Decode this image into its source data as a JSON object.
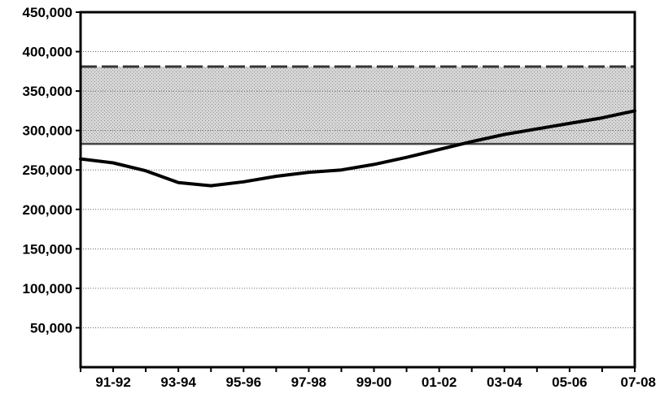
{
  "chart_data": {
    "type": "line",
    "title": "",
    "xlabel": "",
    "ylabel": "",
    "ylim": [
      0,
      450000
    ],
    "y_ticks": [
      50000,
      100000,
      150000,
      200000,
      250000,
      300000,
      350000,
      400000,
      450000
    ],
    "y_tick_labels": [
      "50,000",
      "100,000",
      "150,000",
      "200,000",
      "250,000",
      "300,000",
      "350,000",
      "400,000",
      "450,000"
    ],
    "x_tick_labels": [
      "91-92",
      "93-94",
      "95-96",
      "97-98",
      "99-00",
      "01-02",
      "03-04",
      "05-06",
      "07-08"
    ],
    "grid": true,
    "band": {
      "lower": 283000,
      "upper": 381000
    },
    "series": [
      {
        "x": [
          "90-91",
          "91-92",
          "92-93",
          "93-94",
          "94-95",
          "95-96",
          "96-97",
          "97-98",
          "98-99",
          "99-00",
          "00-01",
          "01-02",
          "02-03",
          "03-04",
          "04-05",
          "05-06",
          "06-07",
          "07-08"
        ],
        "values": [
          264000,
          259000,
          249000,
          234000,
          230000,
          235000,
          242000,
          247000,
          250000,
          257000,
          266000,
          276000,
          286000,
          295000,
          302000,
          309000,
          316000,
          325000
        ]
      }
    ],
    "colors": {
      "line": "#000000",
      "band_fill": "#cfcfcf",
      "grid": "#666666"
    }
  }
}
